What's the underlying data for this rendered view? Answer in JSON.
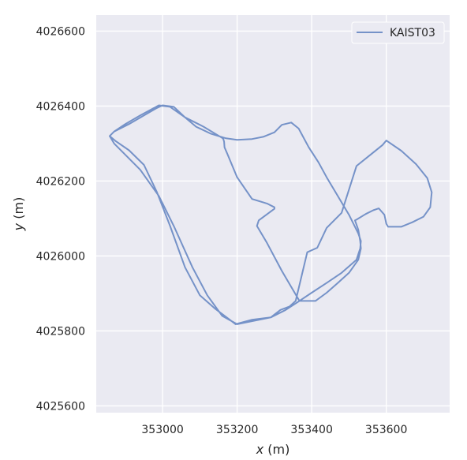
{
  "chart_data": {
    "type": "line",
    "series": [
      {
        "name": "KAIST03",
        "color": "#7592c8",
        "x": [
          353196,
          353240,
          353290,
          353330,
          353367,
          353400,
          353440,
          353480,
          353520,
          353530,
          353532,
          353525,
          353500,
          353470,
          353440,
          353418,
          353392,
          353365,
          353345,
          353320,
          353300,
          353270,
          353240,
          353200,
          353170,
          353130,
          353090,
          353060,
          353030,
          353000,
          352985,
          352950,
          352910,
          352870,
          352858,
          352870,
          352900,
          352940,
          352990,
          353030,
          353080,
          353120,
          353160,
          353200,
          353260,
          353290,
          353316,
          353340,
          353357,
          353388,
          353415,
          353440,
          353480,
          353520,
          353560,
          353590,
          353600,
          353640,
          353680,
          353710,
          353722,
          353718,
          353700,
          353670,
          353640,
          353605,
          353600,
          353595,
          353580,
          353565,
          353545,
          353520,
          353516,
          353525,
          353530,
          353532,
          353525,
          353500,
          353470,
          353440,
          353410,
          353367,
          353320,
          353280,
          353253,
          353258,
          353300,
          353300,
          353280,
          353240,
          353200,
          353174,
          353166,
          353165,
          353163,
          353160,
          353110,
          353060,
          353020,
          352990,
          352940,
          352900,
          352870,
          352858,
          352875,
          352910,
          352950,
          352985,
          353020,
          353060,
          353100,
          353140,
          353180,
          353196
        ],
        "y": [
          4025818,
          4025830,
          4025836,
          4025856,
          4025880,
          4025902,
          4025928,
          4025955,
          4025990,
          4026020,
          4026040,
          4026060,
          4026110,
          4026160,
          4026210,
          4026250,
          4026290,
          4026340,
          4026356,
          4026350,
          4026330,
          4026318,
          4026312,
          4026310,
          4026314,
          4026326,
          4026345,
          4026370,
          4026398,
          4026402,
          4026395,
          4026375,
          4026352,
          4026332,
          4026320,
          4026300,
          4026270,
          4026230,
          4026160,
          4026080,
          4025970,
          4025895,
          4025840,
          4025818,
          4025830,
          4025836,
          4025856,
          4025865,
          4025880,
          4026010,
          4026022,
          4026075,
          4026115,
          4026240,
          4026272,
          4026296,
          4026308,
          4026281,
          4026245,
          4026208,
          4026170,
          4026130,
          4026105,
          4026090,
          4026078,
          4026078,
          4026086,
          4026110,
          4026127,
          4026122,
          4026112,
          4026097,
          4026095,
          4026070,
          4026040,
          4026020,
          4025990,
          4025955,
          4025928,
          4025902,
          4025880,
          4025880,
          4025960,
          4026035,
          4026080,
          4026095,
          4026126,
          4026130,
          4026140,
          4026152,
          4026210,
          4026272,
          4026290,
          4026305,
          4026312,
          4026315,
          4026345,
          4026370,
          4026398,
          4026402,
          4026375,
          4026352,
          4026332,
          4026320,
          4026306,
          4026282,
          4026243,
          4026170,
          4026080,
          4025970,
          4025895,
          4025860,
          4025830,
          4025818
        ]
      }
    ],
    "xlabel": "x (m)",
    "ylabel": "y (m)",
    "xticks": [
      353000,
      353200,
      353400,
      353600
    ],
    "yticks": [
      4025600,
      4025800,
      4026000,
      4026200,
      4026400,
      4026600
    ],
    "xlim": [
      352822,
      353770
    ],
    "ylim": [
      4025582,
      4026643
    ],
    "grid": true,
    "legend": "top-right",
    "background": "#eaeaf2"
  }
}
